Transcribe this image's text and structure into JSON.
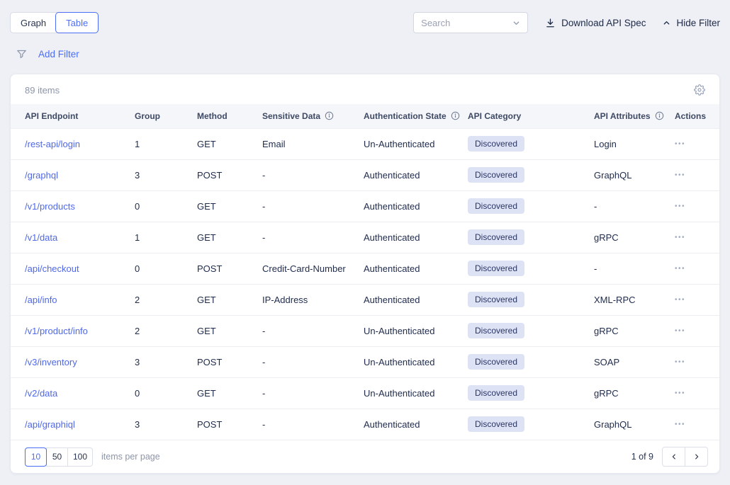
{
  "view_toggle": {
    "options": [
      "Graph",
      "Table"
    ],
    "selected": "Table"
  },
  "toolbar": {
    "search_placeholder": "Search",
    "download_label": "Download API Spec",
    "hide_filter_label": "Hide Filter"
  },
  "filter": {
    "add_filter_label": "Add Filter"
  },
  "table": {
    "items_count": "89 items",
    "columns": [
      {
        "label": "API Endpoint",
        "info": false
      },
      {
        "label": "Group",
        "info": false
      },
      {
        "label": "Method",
        "info": false
      },
      {
        "label": "Sensitive Data",
        "info": true
      },
      {
        "label": "Authentication State",
        "info": true
      },
      {
        "label": "API Category",
        "info": false
      },
      {
        "label": "API Attributes",
        "info": true
      },
      {
        "label": "Actions",
        "info": false
      }
    ],
    "rows": [
      {
        "endpoint": "/rest-api/login",
        "group": "1",
        "method": "GET",
        "sensitive_data": "Email",
        "auth_state": "Un-Authenticated",
        "category": "Discovered",
        "attributes": "Login"
      },
      {
        "endpoint": "/graphql",
        "group": "3",
        "method": "POST",
        "sensitive_data": "-",
        "auth_state": "Authenticated",
        "category": "Discovered",
        "attributes": "GraphQL"
      },
      {
        "endpoint": "/v1/products",
        "group": "0",
        "method": "GET",
        "sensitive_data": "-",
        "auth_state": "Authenticated",
        "category": "Discovered",
        "attributes": "-"
      },
      {
        "endpoint": "/v1/data",
        "group": "1",
        "method": "GET",
        "sensitive_data": "-",
        "auth_state": "Authenticated",
        "category": "Discovered",
        "attributes": "gRPC"
      },
      {
        "endpoint": "/api/checkout",
        "group": "0",
        "method": "POST",
        "sensitive_data": "Credit-Card-Number",
        "auth_state": "Authenticated",
        "category": "Discovered",
        "attributes": "-"
      },
      {
        "endpoint": "/api/info",
        "group": "2",
        "method": "GET",
        "sensitive_data": "IP-Address",
        "auth_state": "Authenticated",
        "category": "Discovered",
        "attributes": "XML-RPC"
      },
      {
        "endpoint": "/v1/product/info",
        "group": "2",
        "method": "GET",
        "sensitive_data": "-",
        "auth_state": "Un-Authenticated",
        "category": "Discovered",
        "attributes": "gRPC"
      },
      {
        "endpoint": "/v3/inventory",
        "group": "3",
        "method": "POST",
        "sensitive_data": "-",
        "auth_state": "Un-Authenticated",
        "category": "Discovered",
        "attributes": "SOAP"
      },
      {
        "endpoint": "/v2/data",
        "group": "0",
        "method": "GET",
        "sensitive_data": "-",
        "auth_state": "Un-Authenticated",
        "category": "Discovered",
        "attributes": "gRPC"
      },
      {
        "endpoint": "/api/graphiql",
        "group": "3",
        "method": "POST",
        "sensitive_data": "-",
        "auth_state": "Authenticated",
        "category": "Discovered",
        "attributes": "GraphQL"
      }
    ]
  },
  "pagination": {
    "page_sizes": [
      "10",
      "50",
      "100"
    ],
    "selected_size": "10",
    "items_per_page_label": "items per page",
    "page_info": "1 of 9"
  },
  "icons": {
    "actions_dots": "•••"
  },
  "colors": {
    "accent": "#4c6ef5",
    "link": "#4f68e8",
    "badge_bg": "#dde2f4",
    "badge_text": "#2a3763",
    "page_bg": "#eef0f6",
    "header_bg": "#f5f6fa",
    "muted_text": "#8d95a9",
    "dark_text": "#1f2b4d"
  }
}
